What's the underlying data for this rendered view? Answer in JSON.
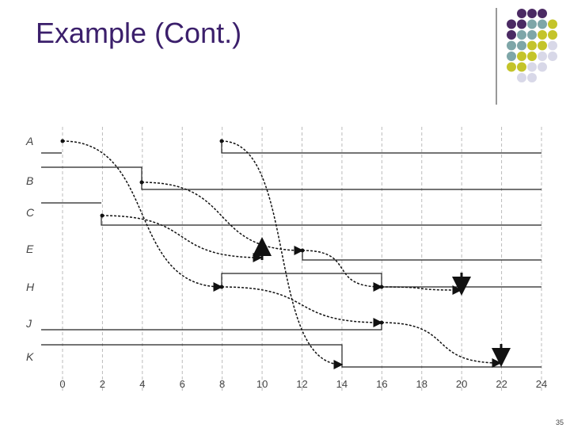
{
  "header": {
    "title": "Example (Cont.)"
  },
  "diagram": {
    "signals": [
      "A",
      "B",
      "C",
      "E",
      "H",
      "J",
      "K"
    ],
    "axis_ticks": [
      0,
      2,
      4,
      6,
      8,
      10,
      12,
      14,
      16,
      18,
      20,
      22,
      24
    ]
  },
  "footer": {
    "page_number": "35"
  }
}
